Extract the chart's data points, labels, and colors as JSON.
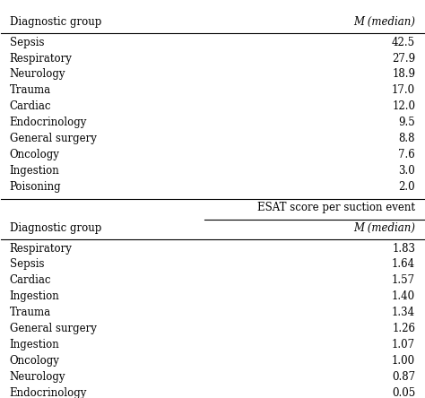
{
  "table1_header": [
    "Diagnostic group",
    "M (median)"
  ],
  "table1_rows": [
    [
      "Sepsis",
      "42.5"
    ],
    [
      "Respiratory",
      "27.9"
    ],
    [
      "Neurology",
      "18.9"
    ],
    [
      "Trauma",
      "17.0"
    ],
    [
      "Cardiac",
      "12.0"
    ],
    [
      "Endocrinology",
      "9.5"
    ],
    [
      "General surgery",
      "8.8"
    ],
    [
      "Oncology",
      "7.6"
    ],
    [
      "Ingestion",
      "3.0"
    ],
    [
      "Poisoning",
      "2.0"
    ]
  ],
  "section2_label": "ESAT score per suction event",
  "table2_header": [
    "Diagnostic group",
    "M (median)"
  ],
  "table2_rows": [
    [
      "Respiratory",
      "1.83"
    ],
    [
      "Sepsis",
      "1.64"
    ],
    [
      "Cardiac",
      "1.57"
    ],
    [
      "Ingestion",
      "1.40"
    ],
    [
      "Trauma",
      "1.34"
    ],
    [
      "General surgery",
      "1.26"
    ],
    [
      "Ingestion",
      "1.07"
    ],
    [
      "Oncology",
      "1.00"
    ],
    [
      "Neurology",
      "0.87"
    ],
    [
      "Endocrinology",
      "0.05"
    ]
  ],
  "bg_color": "#ffffff",
  "text_color": "#000000",
  "font_size": 8.5
}
